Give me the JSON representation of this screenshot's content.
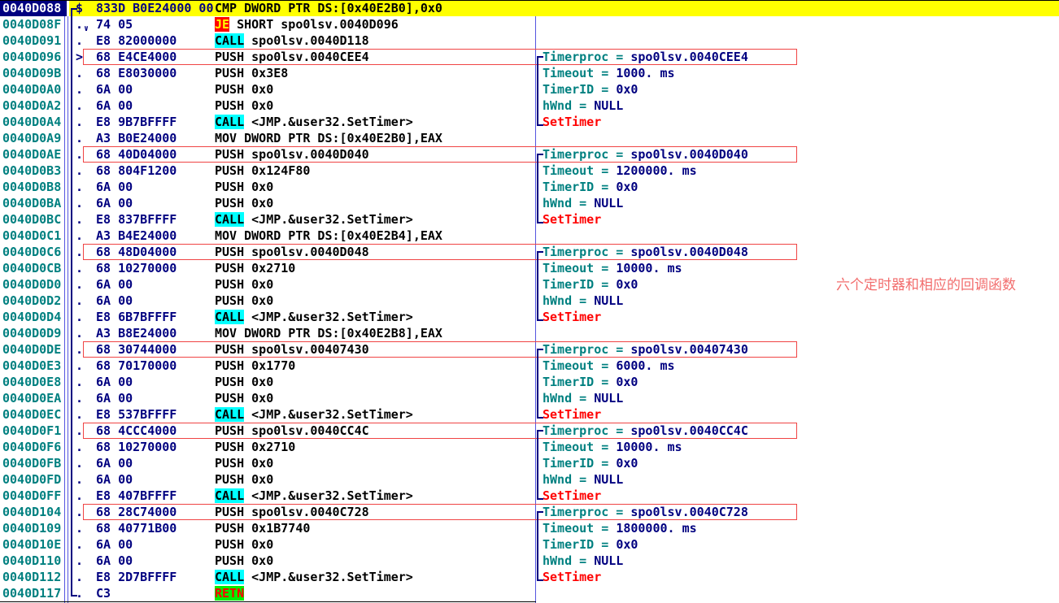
{
  "annotation": {
    "text": "六个定时器和相应的回调函数"
  },
  "colors": {
    "selected_row_bg": "#ffff00",
    "selected_addr_bg": "#000080",
    "address_text": "#008080",
    "bytes_text": "#000080",
    "disasm_text": "#000000",
    "call_highlight_bg": "#00ffff",
    "jump_highlight_bg": "#ff0000",
    "jump_highlight_text": "#ffff00",
    "retn_highlight_bg": "#00ee00",
    "retn_highlight_text": "#ff0000",
    "comment_label": "#008080",
    "comment_value": "#000080",
    "settimer_text": "#ff0000",
    "annotation_box_border": "#f04444",
    "annotation_text": "#f26d6d",
    "column_separator": "#5555e0"
  },
  "disassembly": {
    "module": "spo0lsv",
    "rows": [
      {
        "addr": "0040D088",
        "marker": "$",
        "bytes": "833D B0E24000 00",
        "op": "CMP",
        "args": "DWORD PTR DS:[0x40E2B0],0x0",
        "hl": "none",
        "selected": true
      },
      {
        "addr": "0040D08F",
        "marker": ".",
        "marker_sub": "∨",
        "bytes": "74 05",
        "op": "JE",
        "args": "SHORT spo0lsv.0040D096",
        "hl": "jump"
      },
      {
        "addr": "0040D091",
        "marker": ".",
        "bytes": "E8 82000000",
        "op": "CALL",
        "args": "spo0lsv.0040D118",
        "hl": "call"
      },
      {
        "addr": "0040D096",
        "marker": ">",
        "bytes": "68 E4CE4000",
        "op": "PUSH",
        "args": "spo0lsv.0040CEE4",
        "hl": "none",
        "boxed": true,
        "comment": {
          "type": "kv",
          "label": "Timerproc",
          "value": "spo0lsv.0040CEE4",
          "bracket": "start"
        }
      },
      {
        "addr": "0040D09B",
        "marker": ".",
        "bytes": "68 E8030000",
        "op": "PUSH",
        "args": "0x3E8",
        "hl": "none",
        "comment": {
          "type": "kv",
          "label": "Timeout",
          "value": "1000. ms",
          "bracket": "mid"
        }
      },
      {
        "addr": "0040D0A0",
        "marker": ".",
        "bytes": "6A 00",
        "op": "PUSH",
        "args": "0x0",
        "hl": "none",
        "comment": {
          "type": "kv",
          "label": "TimerID",
          "value": "0x0",
          "bracket": "mid"
        }
      },
      {
        "addr": "0040D0A2",
        "marker": ".",
        "bytes": "6A 00",
        "op": "PUSH",
        "args": "0x0",
        "hl": "none",
        "comment": {
          "type": "kv",
          "label": "hWnd",
          "value": "NULL",
          "bracket": "mid"
        }
      },
      {
        "addr": "0040D0A4",
        "marker": ".",
        "bytes": "E8 9B7BFFFF",
        "op": "CALL",
        "args": "<JMP.&user32.SetTimer>",
        "hl": "call",
        "comment": {
          "type": "api",
          "label": "SetTimer",
          "bracket": "end"
        }
      },
      {
        "addr": "0040D0A9",
        "marker": ".",
        "bytes": "A3 B0E24000",
        "op": "MOV",
        "args": "DWORD PTR DS:[0x40E2B0],EAX",
        "hl": "none"
      },
      {
        "addr": "0040D0AE",
        "marker": ".",
        "bytes": "68 40D04000",
        "op": "PUSH",
        "args": "spo0lsv.0040D040",
        "hl": "none",
        "boxed": true,
        "comment": {
          "type": "kv",
          "label": "Timerproc",
          "value": "spo0lsv.0040D040",
          "bracket": "start"
        }
      },
      {
        "addr": "0040D0B3",
        "marker": ".",
        "bytes": "68 804F1200",
        "op": "PUSH",
        "args": "0x124F80",
        "hl": "none",
        "comment": {
          "type": "kv",
          "label": "Timeout",
          "value": "1200000. ms",
          "bracket": "mid"
        }
      },
      {
        "addr": "0040D0B8",
        "marker": ".",
        "bytes": "6A 00",
        "op": "PUSH",
        "args": "0x0",
        "hl": "none",
        "comment": {
          "type": "kv",
          "label": "TimerID",
          "value": "0x0",
          "bracket": "mid"
        }
      },
      {
        "addr": "0040D0BA",
        "marker": ".",
        "bytes": "6A 00",
        "op": "PUSH",
        "args": "0x0",
        "hl": "none",
        "comment": {
          "type": "kv",
          "label": "hWnd",
          "value": "NULL",
          "bracket": "mid"
        }
      },
      {
        "addr": "0040D0BC",
        "marker": ".",
        "bytes": "E8 837BFFFF",
        "op": "CALL",
        "args": "<JMP.&user32.SetTimer>",
        "hl": "call",
        "comment": {
          "type": "api",
          "label": "SetTimer",
          "bracket": "end"
        }
      },
      {
        "addr": "0040D0C1",
        "marker": ".",
        "bytes": "A3 B4E24000",
        "op": "MOV",
        "args": "DWORD PTR DS:[0x40E2B4],EAX",
        "hl": "none"
      },
      {
        "addr": "0040D0C6",
        "marker": ".",
        "bytes": "68 48D04000",
        "op": "PUSH",
        "args": "spo0lsv.0040D048",
        "hl": "none",
        "boxed": true,
        "comment": {
          "type": "kv",
          "label": "Timerproc",
          "value": "spo0lsv.0040D048",
          "bracket": "start"
        }
      },
      {
        "addr": "0040D0CB",
        "marker": ".",
        "bytes": "68 10270000",
        "op": "PUSH",
        "args": "0x2710",
        "hl": "none",
        "comment": {
          "type": "kv",
          "label": "Timeout",
          "value": "10000. ms",
          "bracket": "mid"
        }
      },
      {
        "addr": "0040D0D0",
        "marker": ".",
        "bytes": "6A 00",
        "op": "PUSH",
        "args": "0x0",
        "hl": "none",
        "comment": {
          "type": "kv",
          "label": "TimerID",
          "value": "0x0",
          "bracket": "mid"
        }
      },
      {
        "addr": "0040D0D2",
        "marker": ".",
        "bytes": "6A 00",
        "op": "PUSH",
        "args": "0x0",
        "hl": "none",
        "comment": {
          "type": "kv",
          "label": "hWnd",
          "value": "NULL",
          "bracket": "mid"
        }
      },
      {
        "addr": "0040D0D4",
        "marker": ".",
        "bytes": "E8 6B7BFFFF",
        "op": "CALL",
        "args": "<JMP.&user32.SetTimer>",
        "hl": "call",
        "comment": {
          "type": "api",
          "label": "SetTimer",
          "bracket": "end"
        }
      },
      {
        "addr": "0040D0D9",
        "marker": ".",
        "bytes": "A3 B8E24000",
        "op": "MOV",
        "args": "DWORD PTR DS:[0x40E2B8],EAX",
        "hl": "none"
      },
      {
        "addr": "0040D0DE",
        "marker": ".",
        "bytes": "68 30744000",
        "op": "PUSH",
        "args": "spo0lsv.00407430",
        "hl": "none",
        "boxed": true,
        "comment": {
          "type": "kv",
          "label": "Timerproc",
          "value": "spo0lsv.00407430",
          "bracket": "start"
        }
      },
      {
        "addr": "0040D0E3",
        "marker": ".",
        "bytes": "68 70170000",
        "op": "PUSH",
        "args": "0x1770",
        "hl": "none",
        "comment": {
          "type": "kv",
          "label": "Timeout",
          "value": "6000. ms",
          "bracket": "mid"
        }
      },
      {
        "addr": "0040D0E8",
        "marker": ".",
        "bytes": "6A 00",
        "op": "PUSH",
        "args": "0x0",
        "hl": "none",
        "comment": {
          "type": "kv",
          "label": "TimerID",
          "value": "0x0",
          "bracket": "mid"
        }
      },
      {
        "addr": "0040D0EA",
        "marker": ".",
        "bytes": "6A 00",
        "op": "PUSH",
        "args": "0x0",
        "hl": "none",
        "comment": {
          "type": "kv",
          "label": "hWnd",
          "value": "NULL",
          "bracket": "mid"
        }
      },
      {
        "addr": "0040D0EC",
        "marker": ".",
        "bytes": "E8 537BFFFF",
        "op": "CALL",
        "args": "<JMP.&user32.SetTimer>",
        "hl": "call",
        "comment": {
          "type": "api",
          "label": "SetTimer",
          "bracket": "end"
        }
      },
      {
        "addr": "0040D0F1",
        "marker": ".",
        "bytes": "68 4CCC4000",
        "op": "PUSH",
        "args": "spo0lsv.0040CC4C",
        "hl": "none",
        "boxed": true,
        "comment": {
          "type": "kv",
          "label": "Timerproc",
          "value": "spo0lsv.0040CC4C",
          "bracket": "start"
        }
      },
      {
        "addr": "0040D0F6",
        "marker": ".",
        "bytes": "68 10270000",
        "op": "PUSH",
        "args": "0x2710",
        "hl": "none",
        "comment": {
          "type": "kv",
          "label": "Timeout",
          "value": "10000. ms",
          "bracket": "mid"
        }
      },
      {
        "addr": "0040D0FB",
        "marker": ".",
        "bytes": "6A 00",
        "op": "PUSH",
        "args": "0x0",
        "hl": "none",
        "comment": {
          "type": "kv",
          "label": "TimerID",
          "value": "0x0",
          "bracket": "mid"
        }
      },
      {
        "addr": "0040D0FD",
        "marker": ".",
        "bytes": "6A 00",
        "op": "PUSH",
        "args": "0x0",
        "hl": "none",
        "comment": {
          "type": "kv",
          "label": "hWnd",
          "value": "NULL",
          "bracket": "mid"
        }
      },
      {
        "addr": "0040D0FF",
        "marker": ".",
        "bytes": "E8 407BFFFF",
        "op": "CALL",
        "args": "<JMP.&user32.SetTimer>",
        "hl": "call",
        "comment": {
          "type": "api",
          "label": "SetTimer",
          "bracket": "end"
        }
      },
      {
        "addr": "0040D104",
        "marker": ".",
        "bytes": "68 28C74000",
        "op": "PUSH",
        "args": "spo0lsv.0040C728",
        "hl": "none",
        "boxed": true,
        "comment": {
          "type": "kv",
          "label": "Timerproc",
          "value": "spo0lsv.0040C728",
          "bracket": "start"
        }
      },
      {
        "addr": "0040D109",
        "marker": ".",
        "bytes": "68 40771B00",
        "op": "PUSH",
        "args": "0x1B7740",
        "hl": "none",
        "comment": {
          "type": "kv",
          "label": "Timeout",
          "value": "1800000. ms",
          "bracket": "mid"
        }
      },
      {
        "addr": "0040D10E",
        "marker": ".",
        "bytes": "6A 00",
        "op": "PUSH",
        "args": "0x0",
        "hl": "none",
        "comment": {
          "type": "kv",
          "label": "TimerID",
          "value": "0x0",
          "bracket": "mid"
        }
      },
      {
        "addr": "0040D110",
        "marker": ".",
        "bytes": "6A 00",
        "op": "PUSH",
        "args": "0x0",
        "hl": "none",
        "comment": {
          "type": "kv",
          "label": "hWnd",
          "value": "NULL",
          "bracket": "mid"
        }
      },
      {
        "addr": "0040D112",
        "marker": ".",
        "bytes": "E8 2D7BFFFF",
        "op": "CALL",
        "args": "<JMP.&user32.SetTimer>",
        "hl": "call",
        "comment": {
          "type": "api",
          "label": "SetTimer",
          "bracket": "end"
        }
      },
      {
        "addr": "0040D117",
        "marker": ".",
        "bytes": "C3",
        "op": "RETN",
        "args": "",
        "hl": "ret"
      }
    ]
  }
}
